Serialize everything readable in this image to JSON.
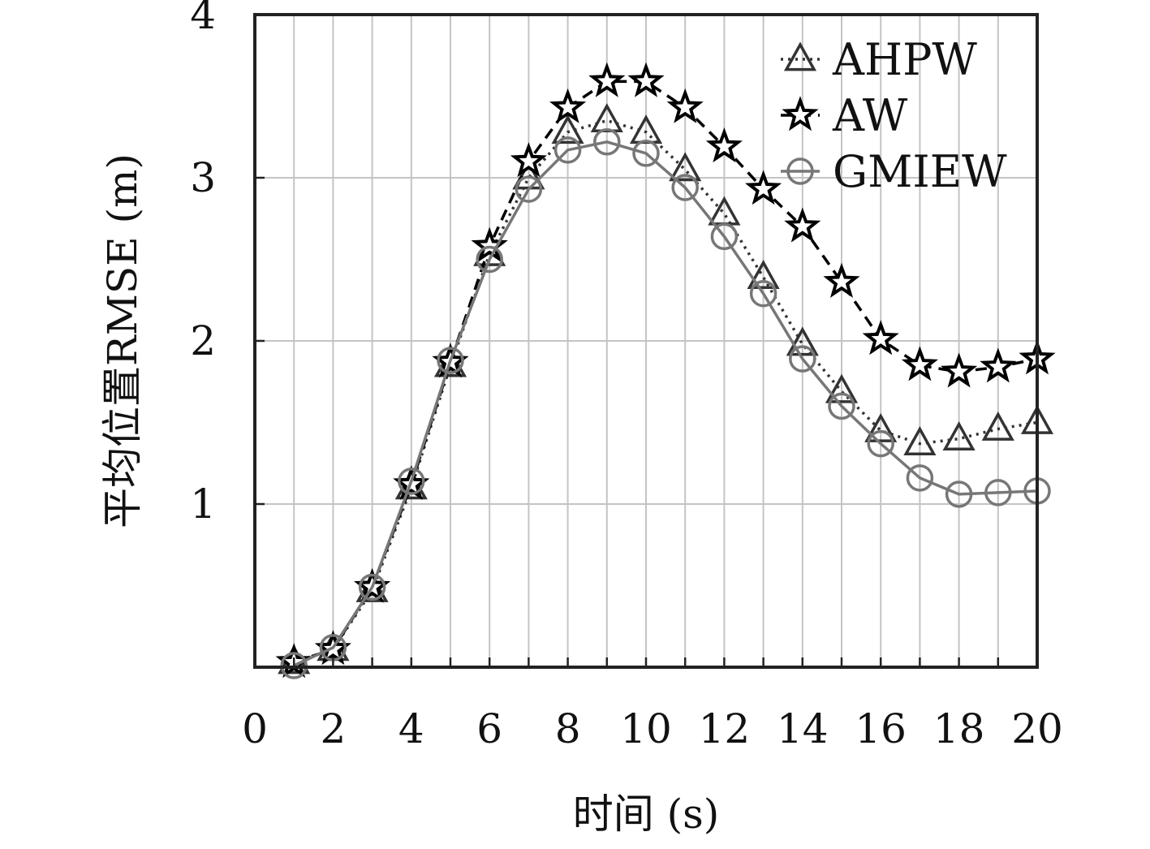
{
  "chart_data": {
    "type": "line",
    "title": "",
    "xlabel": "时间 (s)",
    "ylabel": "平均位置RMSE (m)",
    "xlim": [
      0,
      20
    ],
    "ylim": [
      0,
      4
    ],
    "x_ticks": [
      0,
      2,
      4,
      6,
      8,
      10,
      12,
      14,
      16,
      18,
      20
    ],
    "y_ticks": [
      1,
      2,
      3,
      4
    ],
    "grid": true,
    "legend_position": "top-right",
    "x": [
      1,
      2,
      3,
      4,
      5,
      6,
      7,
      8,
      9,
      10,
      11,
      12,
      13,
      14,
      15,
      16,
      17,
      18,
      19,
      20
    ],
    "series": [
      {
        "name": "AHPW",
        "marker": "triangle",
        "line_style": "dotted",
        "color": "#333333",
        "values": [
          0.03,
          0.11,
          0.47,
          1.1,
          1.85,
          2.53,
          3.0,
          3.28,
          3.35,
          3.28,
          3.05,
          2.78,
          2.39,
          1.98,
          1.69,
          1.45,
          1.37,
          1.4,
          1.46,
          1.5
        ]
      },
      {
        "name": "AW",
        "marker": "star",
        "line_style": "dashed",
        "color": "#000000",
        "values": [
          0.03,
          0.11,
          0.49,
          1.12,
          1.87,
          2.58,
          3.1,
          3.43,
          3.59,
          3.59,
          3.43,
          3.19,
          2.93,
          2.7,
          2.36,
          2.01,
          1.85,
          1.81,
          1.84,
          1.89
        ]
      },
      {
        "name": "GMIEW",
        "marker": "circle",
        "line_style": "solid",
        "color": "#777777",
        "values": [
          0.01,
          0.12,
          0.49,
          1.14,
          1.88,
          2.5,
          2.93,
          3.17,
          3.22,
          3.15,
          2.94,
          2.64,
          2.29,
          1.89,
          1.6,
          1.37,
          1.16,
          1.06,
          1.07,
          1.08
        ]
      }
    ]
  }
}
